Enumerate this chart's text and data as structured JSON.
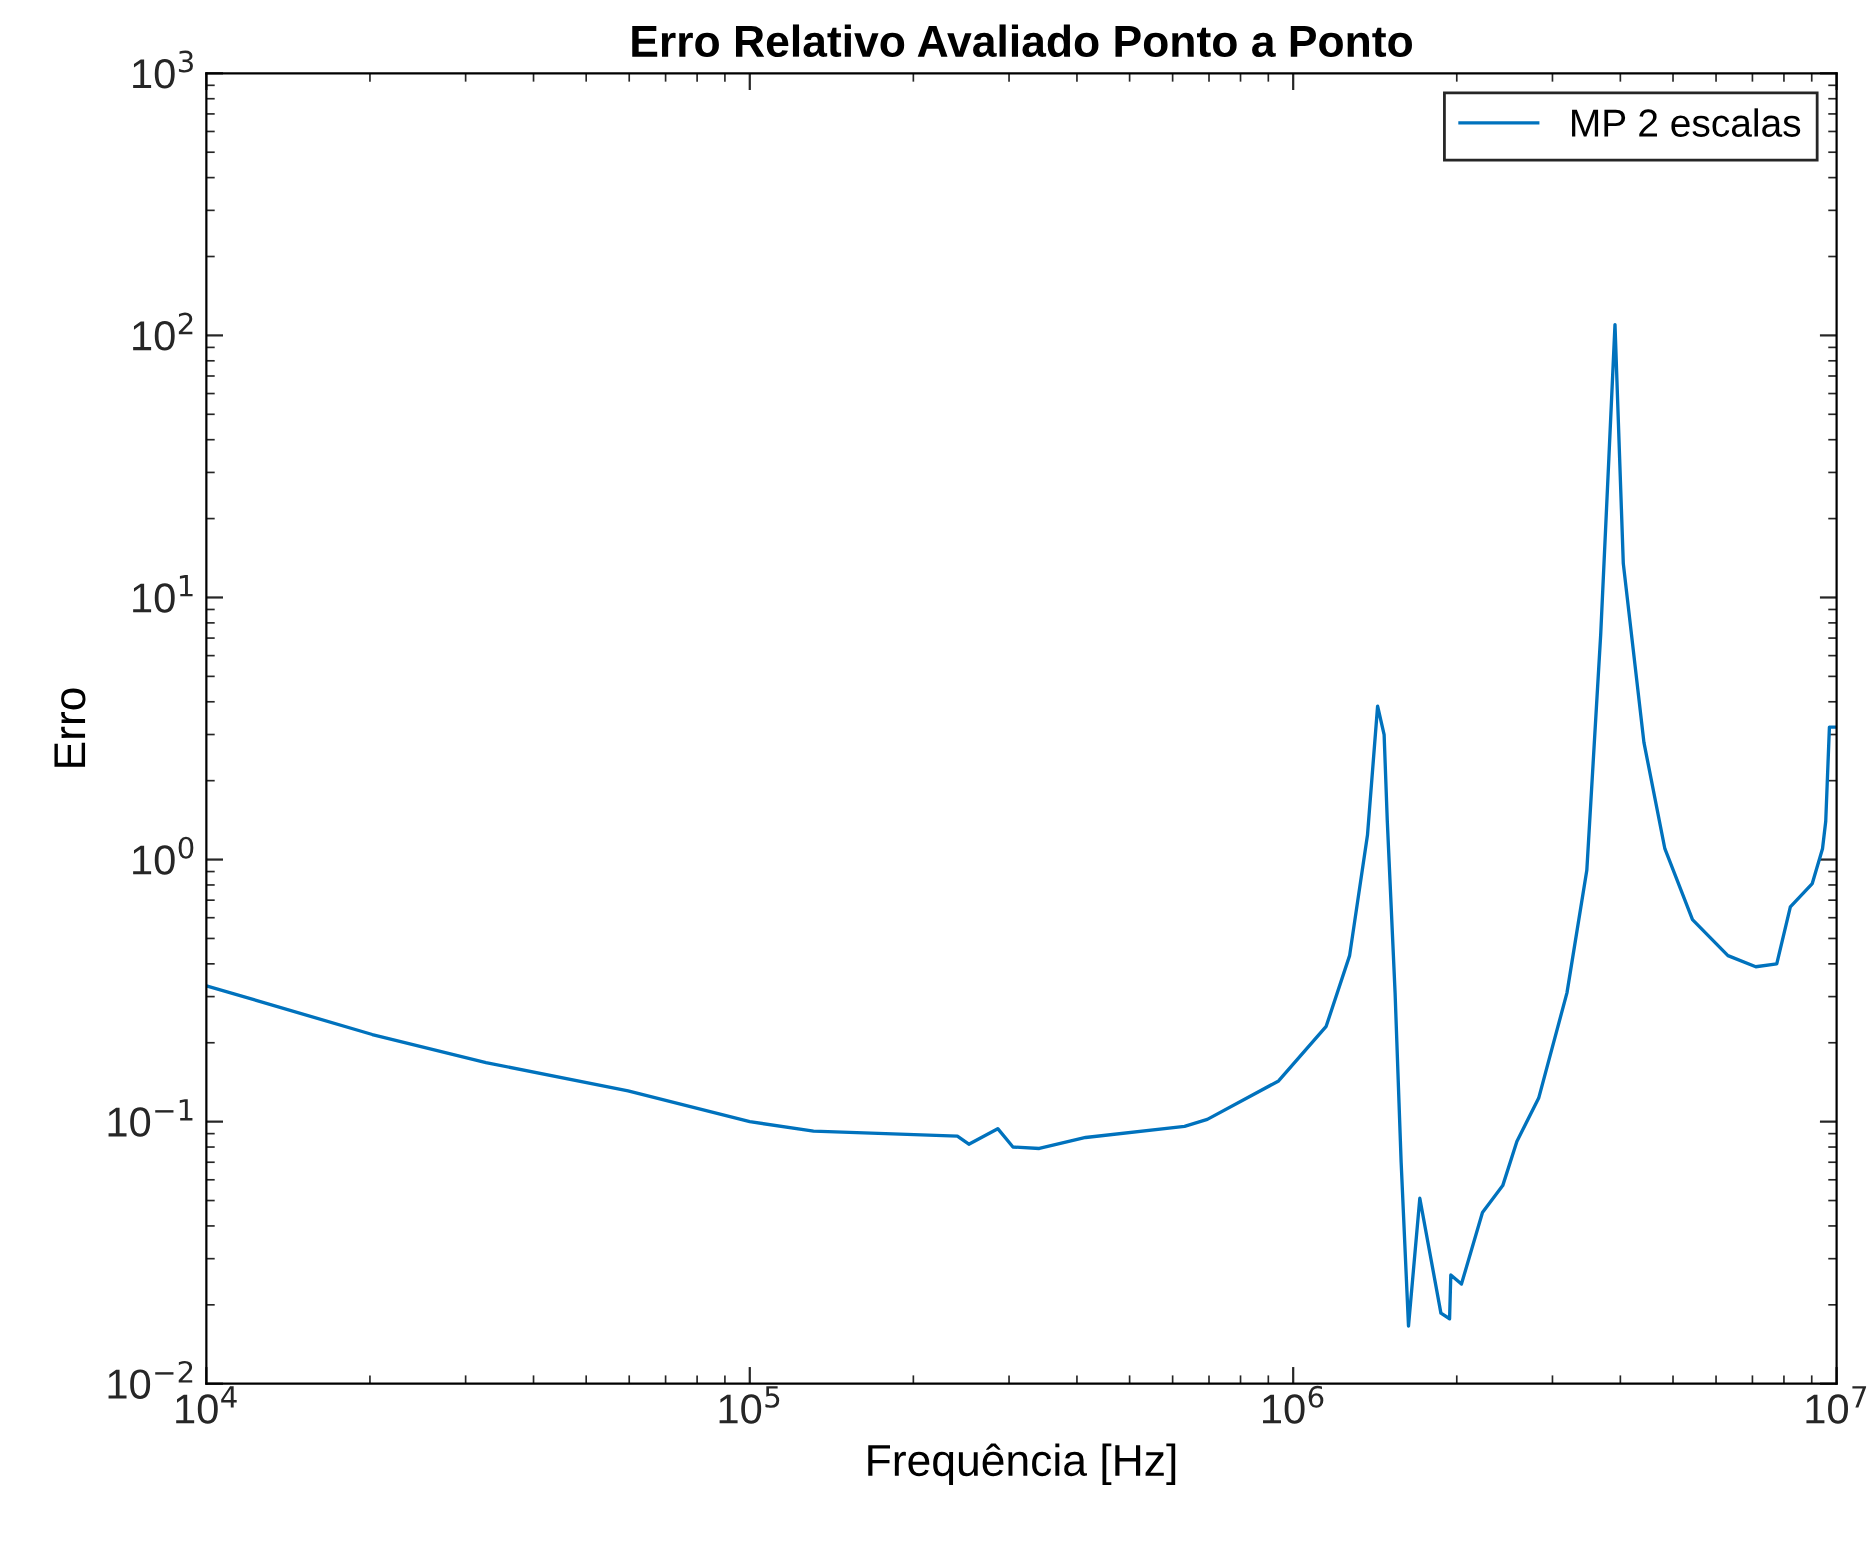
{
  "chart_data": {
    "type": "line",
    "title": "Erro Relativo Avaliado Ponto a Ponto",
    "xlabel": "Frequência [Hz]",
    "ylabel": "Erro",
    "log": "xy",
    "grid": false,
    "legend": "top right",
    "line_style": "solid",
    "marker": "none",
    "xlim": [
      10000,
      10000000
    ],
    "ylim": [
      0.01,
      1000
    ],
    "xticks": [
      {
        "value": 10000,
        "label": "10$^{4}$"
      },
      {
        "value": 100000,
        "label": "10$^{5}$"
      },
      {
        "value": 1000000,
        "label": "10$^{6}$"
      },
      {
        "value": 10000000,
        "label": "10$^{7}$"
      }
    ],
    "yticks": [
      {
        "value": 0.01,
        "label": "10$^{−2}$"
      },
      {
        "value": 0.1,
        "label": "10$^{−1}$"
      },
      {
        "value": 1,
        "label": "10$^{0}$"
      },
      {
        "value": 10,
        "label": "10$^{1}$"
      },
      {
        "value": 100,
        "label": "10$^{2}$"
      },
      {
        "value": 1000,
        "label": "10$^{3}$"
      }
    ],
    "series": [
      {
        "name": "MP 2 escalas",
        "color": "#0072bd",
        "x": [
          10000,
          20200,
          32700,
          59700,
          100000,
          131000,
          241000,
          253000,
          286000,
          305000,
          341000,
          415000,
          631000,
          695000,
          940000,
          1150000,
          1270000,
          1370000,
          1430000,
          1470000,
          1490000,
          1540000,
          1580000,
          1630000,
          1710000,
          1870000,
          1940000,
          1950000,
          2040000,
          2230000,
          2430000,
          2580000,
          2830000,
          3190000,
          3470000,
          3680000,
          3810000,
          3910000,
          4050000,
          4420000,
          4830000,
          5430000,
          6310000,
          7100000,
          7760000,
          8220000,
          9020000,
          9420000,
          9550000,
          9700000,
          10000000
        ],
        "values": [
          0.33,
          0.215,
          0.168,
          0.131,
          0.1,
          0.092,
          0.088,
          0.082,
          0.094,
          0.08,
          0.079,
          0.087,
          0.096,
          0.102,
          0.143,
          0.231,
          0.43,
          1.24,
          3.85,
          3.0,
          1.4,
          0.31,
          0.07,
          0.0166,
          0.051,
          0.0186,
          0.0177,
          0.026,
          0.024,
          0.045,
          0.057,
          0.084,
          0.123,
          0.31,
          0.91,
          7.2,
          34,
          110,
          13.5,
          2.8,
          1.1,
          0.59,
          0.43,
          0.39,
          0.4,
          0.66,
          0.81,
          1.1,
          1.4,
          3.2,
          3.2
        ]
      }
    ]
  }
}
